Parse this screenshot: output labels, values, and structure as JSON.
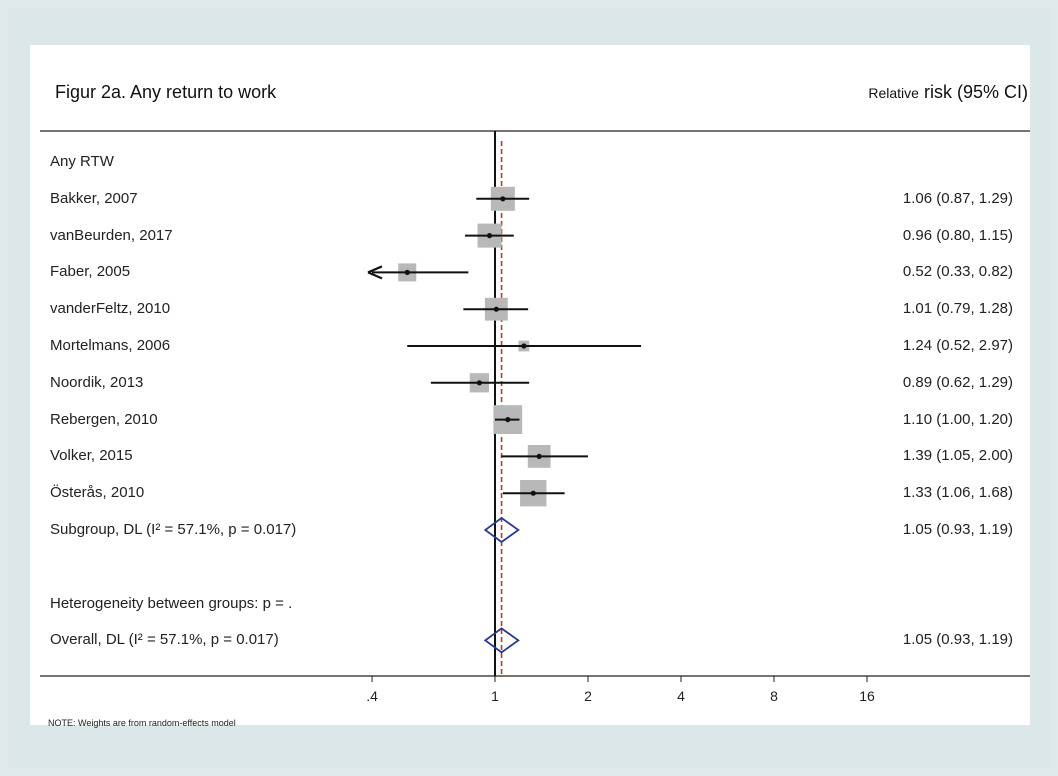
{
  "header": {
    "title": "Figur 2a. Any return to work",
    "right_prefix": "Relative",
    "right_main": "risk (95% CI)"
  },
  "note": "NOTE: Weights are from random-effects model",
  "chart_data": {
    "type": "forest",
    "title": "Figur 2a. Any return to work",
    "xlabel": "",
    "ylabel": "Relative risk (95% CI)",
    "x_scale": "log",
    "xticks": [
      ".4",
      "1",
      "2",
      "4",
      "8",
      "16"
    ],
    "xtick_values": [
      0.4,
      1,
      2,
      4,
      8,
      16
    ],
    "reference_line": 1,
    "pooled_line": 1.05,
    "rows": [
      {
        "label": "Any RTW",
        "kind": "header"
      },
      {
        "label": "Bakker, 2007",
        "kind": "study",
        "rr": 1.06,
        "lo": 0.87,
        "hi": 1.29,
        "ci_text": "1.06 (0.87, 1.29)",
        "weight": 1.0
      },
      {
        "label": "vanBeurden, 2017",
        "kind": "study",
        "rr": 0.96,
        "lo": 0.8,
        "hi": 1.15,
        "ci_text": "0.96 (0.80, 1.15)",
        "weight": 1.0
      },
      {
        "label": "Faber, 2005",
        "kind": "study",
        "rr": 0.52,
        "lo": 0.33,
        "hi": 0.82,
        "ci_text": "0.52 (0.33, 0.82)",
        "weight": 0.75,
        "arrow_left": true
      },
      {
        "label": "vanderFeltz, 2010",
        "kind": "study",
        "rr": 1.01,
        "lo": 0.79,
        "hi": 1.28,
        "ci_text": "1.01 (0.79, 1.28)",
        "weight": 0.95
      },
      {
        "label": "Mortelmans, 2006",
        "kind": "study",
        "rr": 1.24,
        "lo": 0.52,
        "hi": 2.97,
        "ci_text": "1.24 (0.52, 2.97)",
        "weight": 0.45
      },
      {
        "label": "Noordik, 2013",
        "kind": "study",
        "rr": 0.89,
        "lo": 0.62,
        "hi": 1.29,
        "ci_text": "0.89 (0.62, 1.29)",
        "weight": 0.8
      },
      {
        "label": "Rebergen, 2010",
        "kind": "study",
        "rr": 1.1,
        "lo": 1.0,
        "hi": 1.2,
        "ci_text": "1.10 (1.00, 1.20)",
        "weight": 1.2
      },
      {
        "label": "Volker, 2015",
        "kind": "study",
        "rr": 1.39,
        "lo": 1.05,
        "hi": 2.0,
        "ci_text": "1.39 (1.05, 2.00)",
        "weight": 0.95
      },
      {
        "label": "Österås, 2010",
        "kind": "study",
        "rr": 1.33,
        "lo": 1.06,
        "hi": 1.68,
        "ci_text": "1.33 (1.06, 1.68)",
        "weight": 1.1
      },
      {
        "label": "Subgroup, DL (I² = 57.1%, p = 0.017)",
        "kind": "pooled",
        "rr": 1.05,
        "lo": 0.93,
        "hi": 1.19,
        "ci_text": "1.05 (0.93, 1.19)"
      },
      {
        "label": "",
        "kind": "blank"
      },
      {
        "label": "Heterogeneity between groups: p = .",
        "kind": "text"
      },
      {
        "label": "Overall, DL (I² = 57.1%, p = 0.017)",
        "kind": "pooled",
        "rr": 1.05,
        "lo": 0.93,
        "hi": 1.19,
        "ci_text": "1.05 (0.93, 1.19)"
      }
    ]
  }
}
